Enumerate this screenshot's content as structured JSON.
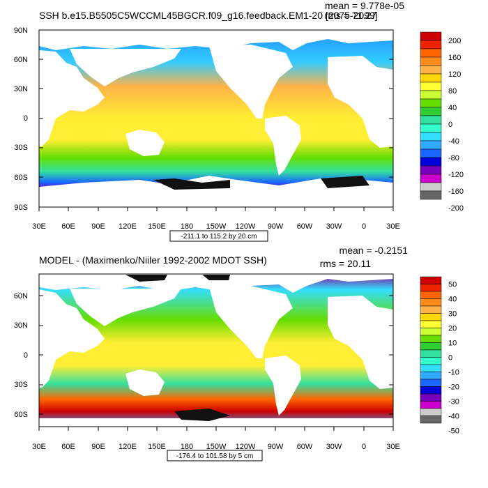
{
  "panels": [
    {
      "title": "SSH b.e15.B5505C5WCCML45BGCR.f09_g16.feedback.EM1-20 [2075-2099]",
      "mean_text": "mean = 9.778e-05",
      "rms_text": "rms = 71.27",
      "contour_info": "-211.1 to 115.2 by 20 cm",
      "lat_labels": [
        "90N",
        "60N",
        "30N",
        "0",
        "30S",
        "60S",
        "90S"
      ],
      "lon_labels": [
        "30E",
        "60E",
        "90E",
        "120E",
        "150E",
        "180",
        "150W",
        "120W",
        "90W",
        "60W",
        "30W",
        "0",
        "30E"
      ],
      "colorbar": {
        "labels": [
          "200",
          "160",
          "120",
          "80",
          "40",
          "0",
          "-40",
          "-80",
          "-120",
          "-160",
          "-200"
        ],
        "colors": [
          "#cc0000",
          "#ee2200",
          "#ff6600",
          "#ff8c1a",
          "#ffb347",
          "#ffd700",
          "#ffff33",
          "#ccff33",
          "#66dd00",
          "#33cc33",
          "#33e0a0",
          "#33ffcc",
          "#33ddff",
          "#33aaff",
          "#1a66ff",
          "#0000dd",
          "#7700bb",
          "#cc00cc",
          "#cccccc",
          "#666666"
        ]
      }
    },
    {
      "title": "MODEL - (Maximenko/Niiler 1992-2002 MDOT SSH)",
      "mean_text": "mean = -0.2151",
      "rms_text": "rms = 20.11",
      "contour_info": "-176.4 to 101.58 by 5 cm",
      "lat_labels": [
        "60N",
        "30N",
        "0",
        "30S",
        "60S"
      ],
      "lon_labels": [
        "30E",
        "60E",
        "90E",
        "120E",
        "150E",
        "180",
        "150W",
        "120W",
        "90W",
        "60W",
        "30W",
        "0",
        "30E"
      ],
      "colorbar": {
        "labels": [
          "50",
          "40",
          "30",
          "20",
          "10",
          "0",
          "-10",
          "-20",
          "-30",
          "-40",
          "-50"
        ],
        "colors": [
          "#cc0000",
          "#ee2200",
          "#ff6600",
          "#ff8c1a",
          "#ffb347",
          "#ffd700",
          "#ffff33",
          "#ccff33",
          "#66dd00",
          "#33cc33",
          "#33e0a0",
          "#33ffcc",
          "#33ddff",
          "#33aaff",
          "#1a66ff",
          "#0000dd",
          "#7700bb",
          "#cc00cc",
          "#cccccc",
          "#666666"
        ]
      }
    }
  ]
}
